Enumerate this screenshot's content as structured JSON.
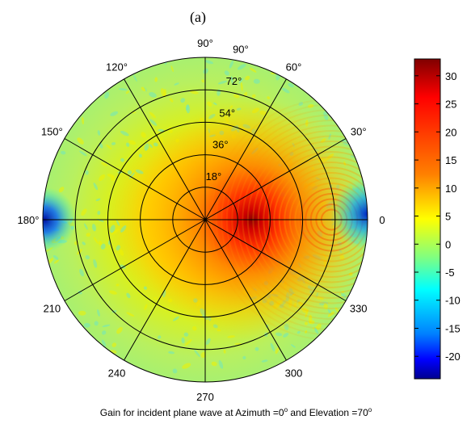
{
  "panel_label": "(a)",
  "chart_data": {
    "type": "heatmap",
    "projection": "polar",
    "title": "",
    "caption": {
      "pre": "Gain for incident plane wave at Azimuth =0",
      "sup1": "o",
      "mid": " and Elevation =70",
      "sup2": "o"
    },
    "angle_labels": [
      {
        "angle": 0,
        "text": "0"
      },
      {
        "angle": 30,
        "text": "30°"
      },
      {
        "angle": 60,
        "text": "60°"
      },
      {
        "angle": 90,
        "text": "90°"
      },
      {
        "angle": 120,
        "text": "120°"
      },
      {
        "angle": 150,
        "text": "150°"
      },
      {
        "angle": 180,
        "text": "180°"
      },
      {
        "angle": 210,
        "text": "210"
      },
      {
        "angle": 240,
        "text": "240"
      },
      {
        "angle": 270,
        "text": "270"
      },
      {
        "angle": 300,
        "text": "300"
      },
      {
        "angle": 330,
        "text": "330"
      }
    ],
    "radial_labels": [
      {
        "value": 18,
        "text": "18°"
      },
      {
        "value": 36,
        "text": "36°"
      },
      {
        "value": 54,
        "text": "54°"
      },
      {
        "value": 72,
        "text": "72°"
      },
      {
        "value": 90,
        "text": "90°"
      }
    ],
    "rlim": [
      0,
      90
    ],
    "spoke_angles": [
      0,
      30,
      60,
      90,
      120,
      150,
      180,
      210,
      240,
      270,
      300,
      330
    ],
    "colorbar": {
      "ticks": [
        30,
        25,
        20,
        15,
        10,
        5,
        0,
        -5,
        -10,
        -15,
        -20
      ],
      "tick_labels": [
        "30",
        "25",
        "20",
        "15",
        "10",
        "5",
        "0",
        "-5",
        "-10",
        "-15",
        "-20"
      ],
      "range": [
        -24,
        33
      ]
    },
    "peak": {
      "azimuth": 0,
      "elevation": 70,
      "value": 33
    },
    "colors": {
      "grid": "#000000",
      "colormap": [
        "#00008f",
        "#0000ff",
        "#0080ff",
        "#00ffff",
        "#80ff80",
        "#ffff00",
        "#ff8000",
        "#ff0000",
        "#800000"
      ]
    }
  }
}
